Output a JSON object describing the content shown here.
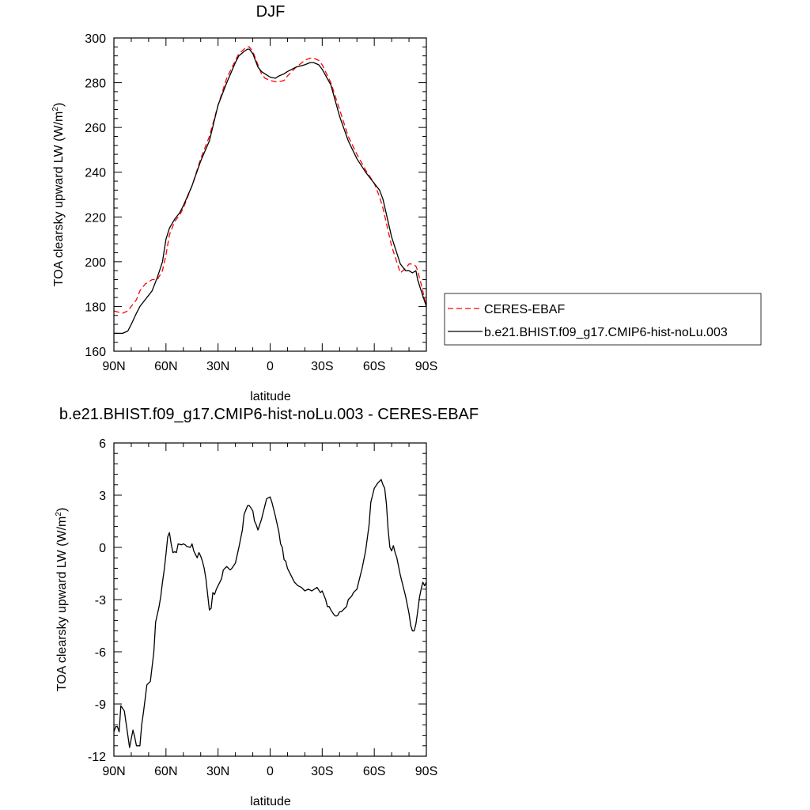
{
  "colors": {
    "obs": "#ff0000",
    "model": "#000000",
    "axis": "#000000",
    "background": "#ffffff"
  },
  "chart_data": [
    {
      "type": "line",
      "title": "DJF",
      "xlabel": "latitude",
      "ylabel": "TOA clearsky upward LW (W/m",
      "ylabel_sup": "2",
      "ylabel_close": ")",
      "xlim": [
        90,
        -90
      ],
      "ylim": [
        160,
        300
      ],
      "xticks": [
        90,
        60,
        30,
        0,
        -30,
        -60,
        -90
      ],
      "xtick_labels": [
        "90N",
        "60N",
        "30N",
        "0",
        "30S",
        "60S",
        "90S"
      ],
      "yticks": [
        160,
        180,
        200,
        220,
        240,
        260,
        280,
        300
      ],
      "ytick_labels": [
        "160",
        "180",
        "200",
        "220",
        "240",
        "260",
        "280",
        "300"
      ],
      "legend": "right",
      "series": [
        {
          "name": "CERES-EBAF",
          "style": "dashed",
          "color": "#ff0000",
          "x": [
            90,
            85,
            82,
            80,
            77,
            75,
            72,
            70,
            68,
            65,
            62,
            60,
            58,
            55,
            52,
            50,
            45,
            40,
            35,
            30,
            25,
            20,
            18,
            15,
            13,
            12,
            10,
            7,
            5,
            3,
            0,
            -3,
            -5,
            -8,
            -10,
            -15,
            -20,
            -23,
            -25,
            -28,
            -30,
            -35,
            -40,
            -45,
            -50,
            -55,
            -60,
            -63,
            -65,
            -70,
            -75,
            -78,
            -80,
            -82,
            -84,
            -85,
            -87,
            -90
          ],
          "values": [
            178,
            177,
            178,
            180,
            183,
            187,
            190,
            191,
            192,
            192,
            196,
            203,
            212,
            218,
            221,
            224,
            234,
            246,
            256,
            270,
            282,
            290,
            293,
            295,
            296,
            296,
            294,
            288,
            284,
            282,
            281,
            280.5,
            280.5,
            281,
            283,
            287,
            290,
            291,
            291,
            290,
            288,
            280,
            268,
            256,
            248,
            241,
            235,
            229,
            224,
            207,
            195,
            197,
            199,
            199,
            198,
            196,
            190,
            180
          ]
        },
        {
          "name": "b.e21.BHIST.f09_g17.CMIP6-hist-noLu.003",
          "style": "solid",
          "color": "#000000",
          "x": [
            90,
            87,
            85,
            82,
            80,
            77,
            75,
            72,
            70,
            68,
            65,
            62,
            60,
            58,
            55,
            52,
            50,
            45,
            40,
            35,
            30,
            25,
            20,
            18,
            15,
            13,
            12,
            10,
            7,
            5,
            3,
            0,
            -3,
            -5,
            -8,
            -10,
            -15,
            -20,
            -23,
            -25,
            -28,
            -30,
            -35,
            -40,
            -45,
            -50,
            -55,
            -60,
            -63,
            -65,
            -70,
            -75,
            -78,
            -80,
            -82,
            -84,
            -85,
            -87,
            -90
          ],
          "values": [
            168,
            168,
            168,
            169,
            172,
            177,
            180,
            183,
            185,
            187,
            193,
            200,
            210,
            215,
            219,
            222,
            225,
            234,
            245,
            254,
            270,
            280,
            289,
            292,
            294,
            295,
            295,
            293,
            287,
            285,
            284,
            282.5,
            282,
            283,
            284,
            285,
            287,
            288,
            289,
            289,
            288,
            286,
            279,
            265,
            254,
            246,
            240,
            235,
            232,
            228,
            211,
            199,
            196,
            196,
            195,
            196,
            192,
            187,
            180
          ]
        }
      ]
    },
    {
      "type": "line",
      "title": "b.e21.BHIST.f09_g17.CMIP6-hist-noLu.003 - CERES-EBAF",
      "xlabel": "latitude",
      "ylabel": "TOA clearsky upward LW (W/m",
      "ylabel_sup": "2",
      "ylabel_close": ")",
      "xlim": [
        90,
        -90
      ],
      "ylim": [
        -12,
        6
      ],
      "xticks": [
        90,
        60,
        30,
        0,
        -30,
        -60,
        -90
      ],
      "xtick_labels": [
        "90N",
        "60N",
        "30N",
        "0",
        "30S",
        "60S",
        "90S"
      ],
      "yticks": [
        -12,
        -9,
        -6,
        -3,
        0,
        3,
        6
      ],
      "ytick_labels": [
        "-12",
        "-9",
        "-6",
        "-3",
        "0",
        "3",
        "6"
      ],
      "series": [
        {
          "name": "",
          "style": "solid",
          "color": "#000000",
          "x": [
            90,
            89,
            88,
            87,
            86,
            84,
            83,
            82,
            81,
            80,
            79,
            78,
            77,
            75,
            74,
            73,
            71,
            70,
            69,
            67,
            66,
            64,
            63,
            62,
            61,
            60,
            59,
            58,
            57,
            56,
            55,
            54,
            53,
            51,
            50,
            49,
            48,
            46,
            45,
            44,
            42,
            41,
            40,
            39,
            38,
            37,
            36,
            35,
            34,
            33,
            32,
            31,
            30,
            28,
            27,
            25,
            23,
            22,
            20,
            18,
            16,
            15,
            13,
            12,
            10,
            9,
            8,
            7,
            5,
            3,
            2,
            0,
            -1,
            -3,
            -5,
            -6,
            -7,
            -8,
            -9,
            -10,
            -11,
            -12,
            -13,
            -14,
            -15,
            -16,
            -18,
            -20,
            -22,
            -24,
            -27,
            -29,
            -30,
            -32,
            -33,
            -34,
            -35,
            -37,
            -38,
            -39,
            -40,
            -41,
            -42,
            -43,
            -44,
            -45,
            -47,
            -48,
            -50,
            -53,
            -55,
            -57,
            -58,
            -59,
            -60,
            -62,
            -63,
            -64,
            -65,
            -66,
            -67,
            -68,
            -69,
            -70,
            -71,
            -72,
            -73,
            -74,
            -75,
            -76,
            -77,
            -78,
            -80,
            -81,
            -82,
            -83,
            -84,
            -85,
            -86,
            -87,
            -88,
            -89,
            -90
          ],
          "values": [
            -10.6,
            -10.3,
            -10.3,
            -10.6,
            -9.1,
            -9.4,
            -10.1,
            -10.8,
            -11.5,
            -11.0,
            -10.5,
            -10.9,
            -11.4,
            -11.4,
            -10.2,
            -9.5,
            -7.9,
            -7.8,
            -7.7,
            -6.0,
            -4.3,
            -3.4,
            -2.8,
            -2.0,
            -1.3,
            -0.4,
            0.6,
            0.85,
            0.2,
            -0.3,
            -0.25,
            -0.3,
            0.2,
            0.15,
            0.2,
            0.15,
            0.05,
            0.0,
            0.2,
            -0.2,
            -0.6,
            -0.3,
            -0.5,
            -0.8,
            -1.2,
            -1.8,
            -2.7,
            -3.6,
            -3.5,
            -2.6,
            -2.7,
            -2.4,
            -2.2,
            -1.8,
            -1.3,
            -1.1,
            -1.3,
            -1.2,
            -0.9,
            0.0,
            1.0,
            1.9,
            2.4,
            2.4,
            2.1,
            1.5,
            1.3,
            1.0,
            1.6,
            2.4,
            2.8,
            2.9,
            2.6,
            1.8,
            0.9,
            0.2,
            0.0,
            -0.7,
            -0.8,
            -1.2,
            -1.4,
            -1.6,
            -1.8,
            -2.0,
            -2.1,
            -2.2,
            -2.3,
            -2.5,
            -2.4,
            -2.5,
            -2.3,
            -2.6,
            -2.5,
            -3.0,
            -3.4,
            -3.4,
            -3.6,
            -3.9,
            -3.95,
            -3.9,
            -3.7,
            -3.7,
            -3.6,
            -3.5,
            -3.4,
            -3.0,
            -2.8,
            -2.6,
            -2.4,
            -1.2,
            -0.2,
            1.3,
            2.6,
            3.0,
            3.4,
            3.7,
            3.8,
            3.9,
            3.6,
            3.4,
            2.5,
            1.0,
            0.0,
            -0.2,
            0.1,
            -0.3,
            -0.6,
            -1.1,
            -1.6,
            -2.0,
            -2.4,
            -2.8,
            -3.8,
            -4.5,
            -4.8,
            -4.8,
            -4.4,
            -3.7,
            -2.9,
            -2.4,
            -2.0,
            -2.2,
            -2.0
          ]
        }
      ]
    }
  ]
}
